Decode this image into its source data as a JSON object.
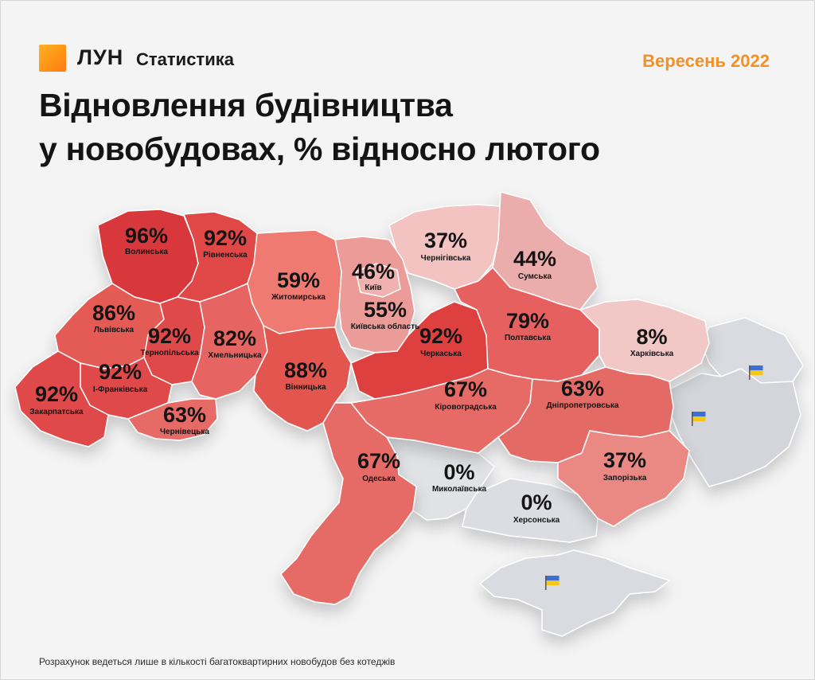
{
  "brand": {
    "name": "ЛУН",
    "product": "Статистика"
  },
  "period": "Вересень 2022",
  "title": {
    "line1": "Відновлення будівництва",
    "line2": "у новобудовах, % відносно лютого"
  },
  "footnote": "Розрахунок ведеться лише в кількості багатоквартирних новобудов без котеджів",
  "colors": {
    "scale_low": "#f2cfcf",
    "scale_high": "#df3a3a",
    "occupied": "#d9dbe0",
    "flag_blue": "#3b6fd1",
    "flag_yellow": "#f5c518",
    "accent": "#f2902a"
  },
  "regions": [
    {
      "name": "Волинська",
      "pct": "96%",
      "value": 96
    },
    {
      "name": "Рівненська",
      "pct": "92%",
      "value": 92
    },
    {
      "name": "Чернігівська",
      "pct": "37%",
      "value": 37
    },
    {
      "name": "Сумська",
      "pct": "44%",
      "value": 44
    },
    {
      "name": "Житомирська",
      "pct": "59%",
      "value": 59
    },
    {
      "name": "Київ",
      "pct": "46%",
      "value": 46
    },
    {
      "name": "Київська область",
      "pct": "55%",
      "value": 55
    },
    {
      "name": "Львівська",
      "pct": "86%",
      "value": 86
    },
    {
      "name": "Тернопільська",
      "pct": "92%",
      "value": 92
    },
    {
      "name": "Хмельницька",
      "pct": "82%",
      "value": 82
    },
    {
      "name": "Черкаська",
      "pct": "92%",
      "value": 92
    },
    {
      "name": "Полтавська",
      "pct": "79%",
      "value": 79
    },
    {
      "name": "Харківська",
      "pct": "8%",
      "value": 8
    },
    {
      "name": "Вінницька",
      "pct": "88%",
      "value": 88
    },
    {
      "name": "І-Франківська",
      "pct": "92%",
      "value": 92
    },
    {
      "name": "Закарпатська",
      "pct": "92%",
      "value": 92
    },
    {
      "name": "Чернівецька",
      "pct": "63%",
      "value": 63
    },
    {
      "name": "Кіровоградська",
      "pct": "67%",
      "value": 67
    },
    {
      "name": "Дніпропетровська",
      "pct": "63%",
      "value": 63
    },
    {
      "name": "Одеська",
      "pct": "67%",
      "value": 67
    },
    {
      "name": "Миколаївська",
      "pct": "0%",
      "value": 0
    },
    {
      "name": "Запорізька",
      "pct": "37%",
      "value": 37
    },
    {
      "name": "Херсонська",
      "pct": "0%",
      "value": 0
    }
  ]
}
